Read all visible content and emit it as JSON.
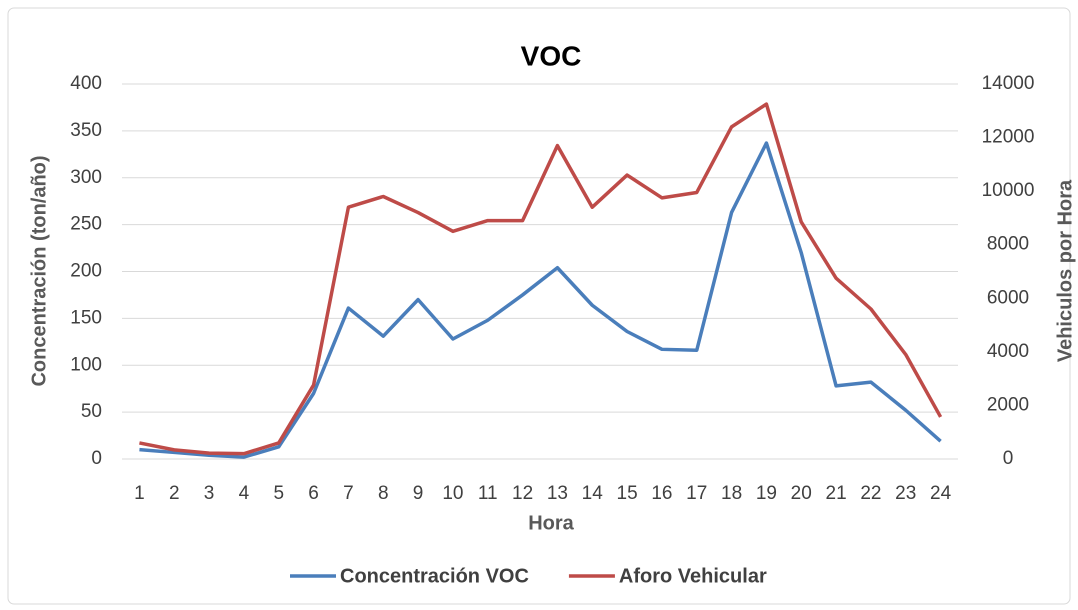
{
  "chart_data": {
    "type": "line",
    "title": "VOC",
    "xlabel": "Hora",
    "ylabel": "Concentración (ton/año)",
    "y2label": "Vehiculos por Hora",
    "categories": [
      1,
      2,
      3,
      4,
      5,
      6,
      7,
      8,
      9,
      10,
      11,
      12,
      13,
      14,
      15,
      16,
      17,
      18,
      19,
      20,
      21,
      22,
      23,
      24
    ],
    "series": [
      {
        "name": "Concentración VOC",
        "color": "#4a7ebb",
        "axis": "y",
        "values": [
          10,
          7,
          4,
          2,
          13,
          70,
          161,
          131,
          170,
          128,
          148,
          175,
          204,
          164,
          136,
          117,
          116,
          263,
          337,
          220,
          78,
          82,
          52,
          19
        ]
      },
      {
        "name": "Aforo Vehicular",
        "color": "#be4b48",
        "axis": "y2",
        "values": [
          600,
          340,
          220,
          200,
          600,
          2760,
          9400,
          9800,
          9200,
          8500,
          8900,
          8900,
          11700,
          9400,
          10600,
          9750,
          9950,
          12400,
          13250,
          8850,
          6750,
          5600,
          3900,
          1570
        ]
      }
    ],
    "ylim": [
      0,
      400
    ],
    "yticks": [
      0,
      50,
      100,
      150,
      200,
      250,
      300,
      350,
      400
    ],
    "y2lim": [
      0,
      14000
    ],
    "y2ticks": [
      0,
      2000,
      4000,
      6000,
      8000,
      10000,
      12000,
      14000
    ],
    "grid": true,
    "legend": "bottom"
  }
}
